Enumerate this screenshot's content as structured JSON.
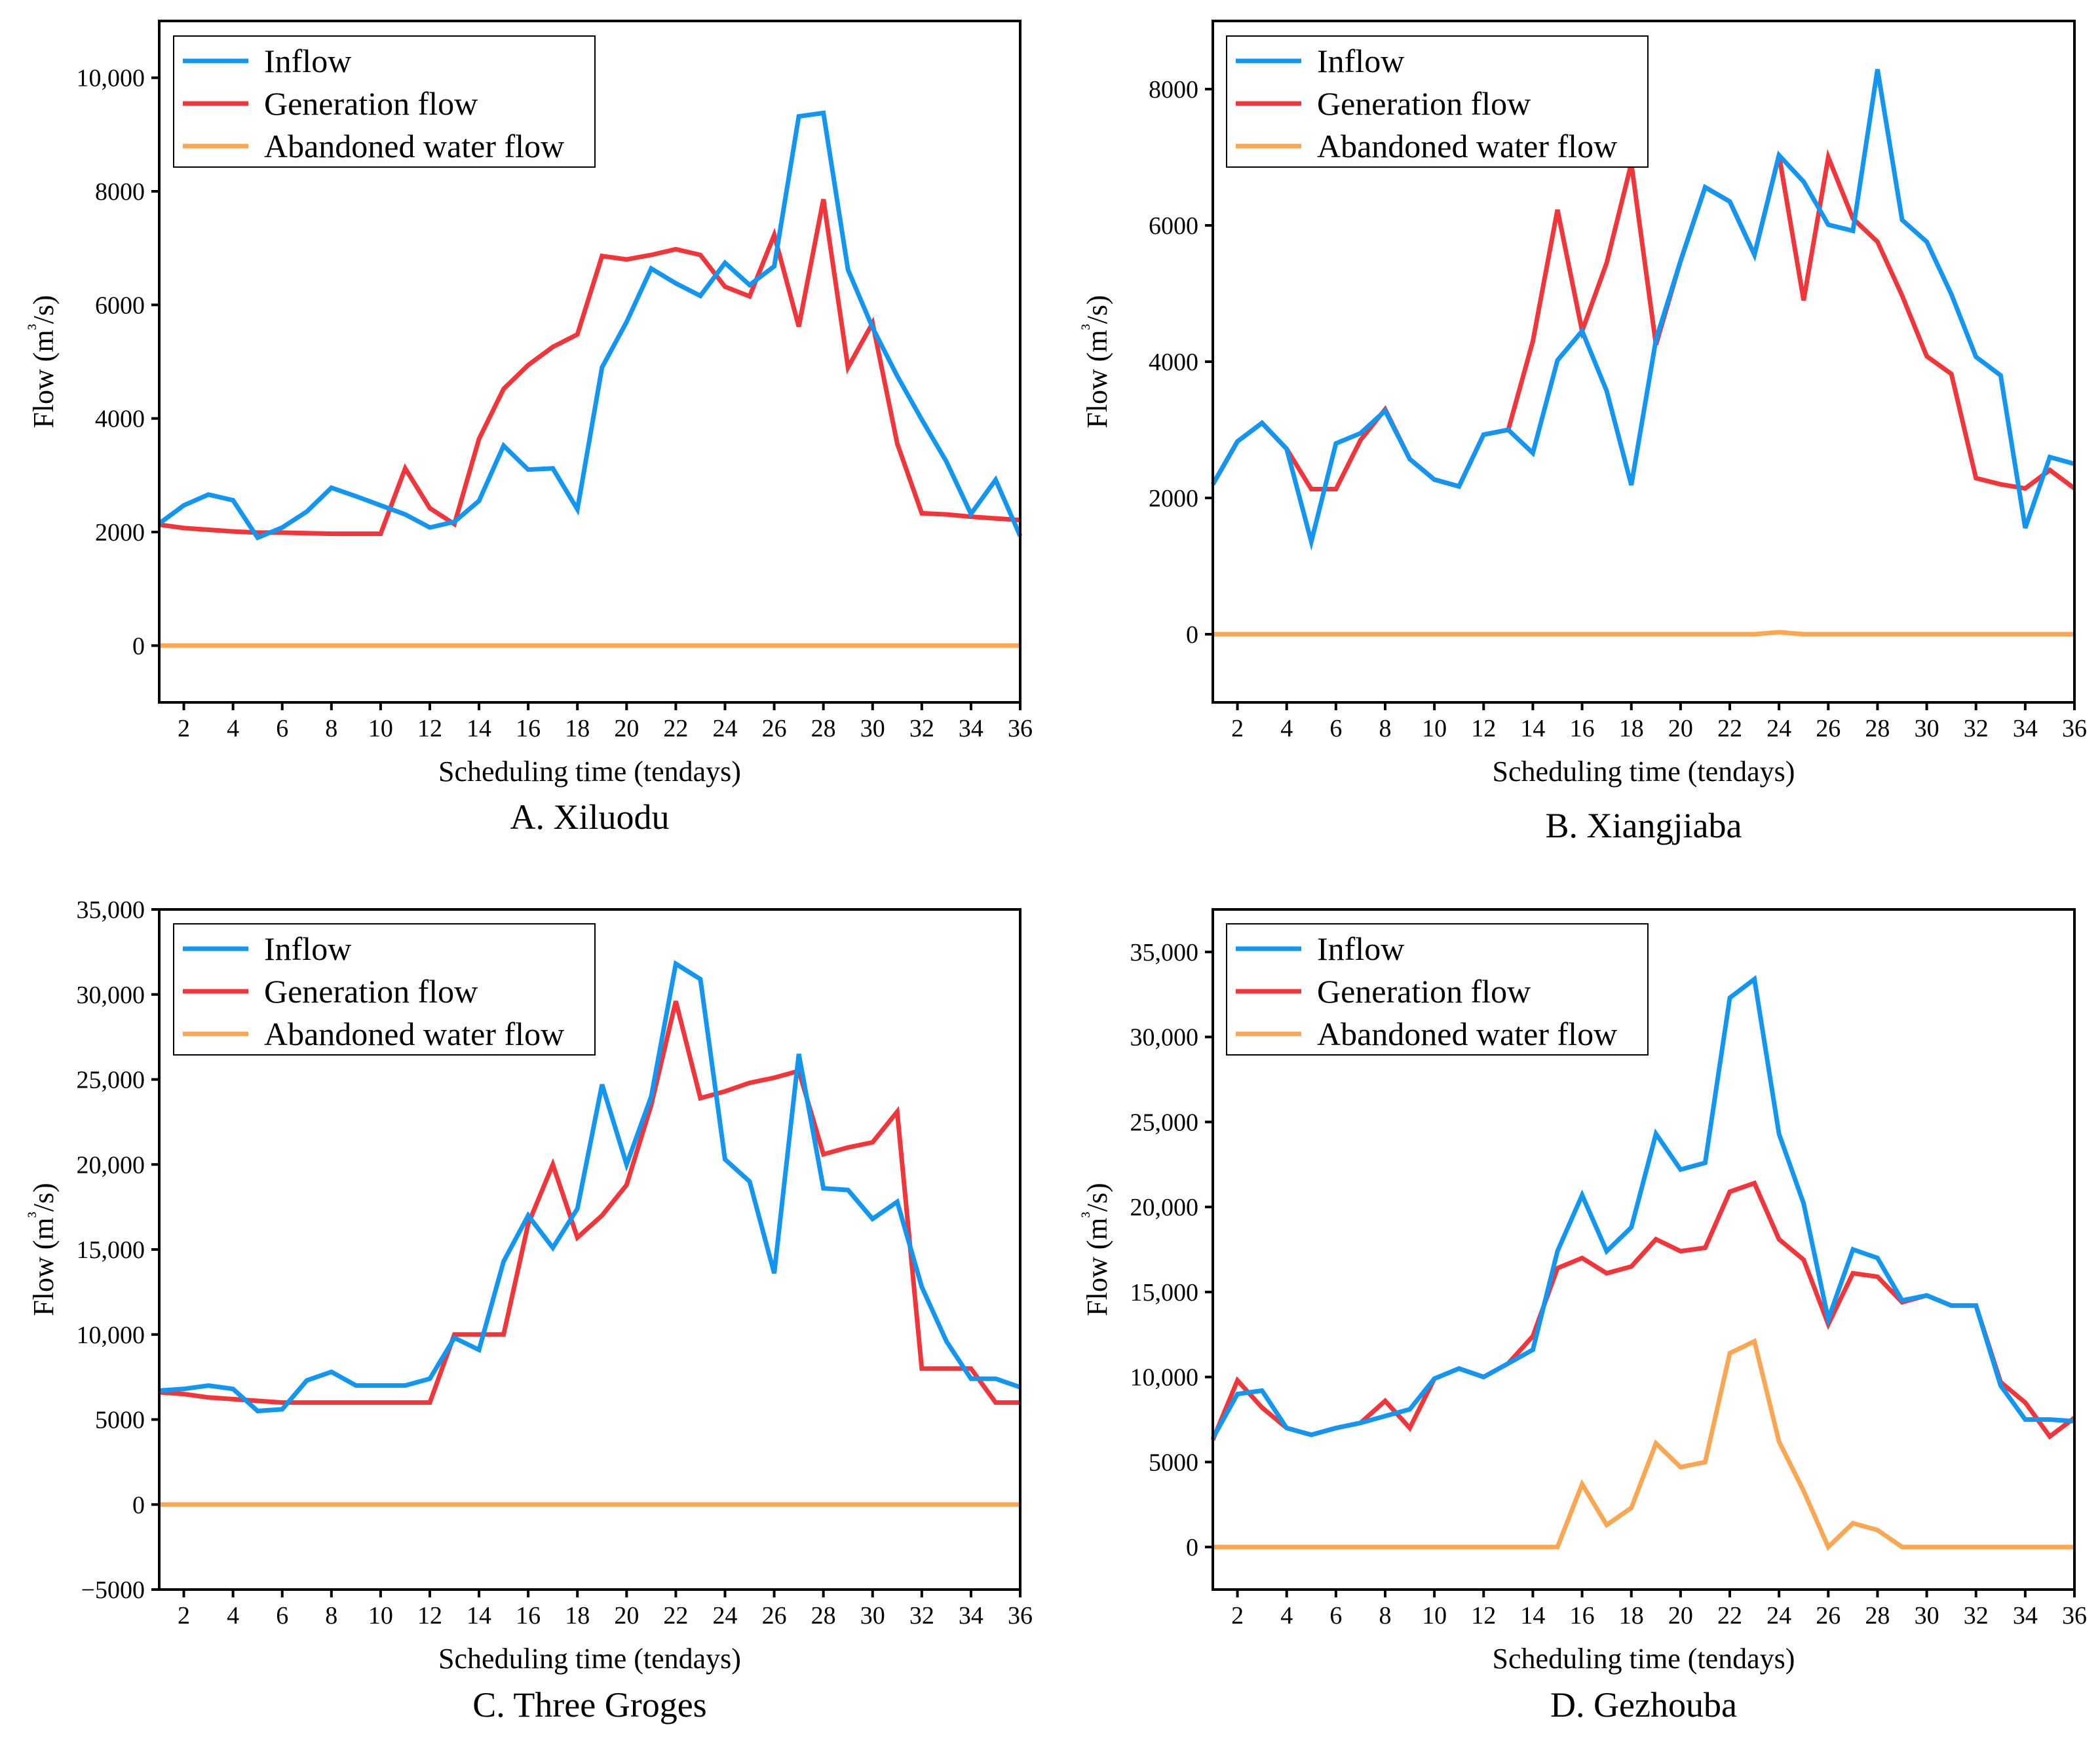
{
  "colors": {
    "inflow": "#1296F0",
    "generation": "#F0363A",
    "abandoned": "#F9A752",
    "axis": "#000000"
  },
  "legend": {
    "inflow": "Inflow",
    "generation": "Generation flow",
    "abandoned": "Abandoned water flow"
  },
  "chart_data": [
    {
      "type": "line",
      "caption": "A. Xiluodu",
      "xlabel": "Scheduling time (tendays)",
      "ylabel": "Flow",
      "ylabel_unit": "m³/s",
      "xlim": [
        1,
        36
      ],
      "ylim": [
        -1000,
        11000
      ],
      "xticks": [
        2,
        4,
        6,
        8,
        10,
        12,
        14,
        16,
        18,
        20,
        22,
        24,
        26,
        28,
        30,
        32,
        34,
        36
      ],
      "yticks": [
        {
          "value": 0,
          "label": "0"
        },
        {
          "value": 2000,
          "label": "2000"
        },
        {
          "value": 4000,
          "label": "4000"
        },
        {
          "value": 6000,
          "label": "6000"
        },
        {
          "value": 8000,
          "label": "8000"
        },
        {
          "value": 10000,
          "label": "10,000"
        }
      ],
      "x": [
        1,
        2,
        3,
        4,
        5,
        6,
        7,
        8,
        9,
        10,
        11,
        12,
        13,
        14,
        15,
        16,
        17,
        18,
        19,
        20,
        21,
        22,
        23,
        24,
        25,
        26,
        27,
        28,
        29,
        30,
        31,
        32,
        33,
        34,
        35,
        36
      ],
      "series": [
        {
          "name": "Inflow",
          "values": [
            2150,
            2470,
            2660,
            2560,
            1900,
            2080,
            2360,
            2780,
            2630,
            2470,
            2310,
            2080,
            2180,
            2550,
            3520,
            3100,
            3120,
            2400,
            4900,
            5700,
            6640,
            6380,
            6160,
            6740,
            6350,
            6680,
            9320,
            9380,
            6620,
            5600,
            4750,
            3980,
            3240,
            2320,
            2920,
            1930
          ]
        },
        {
          "name": "Generation flow",
          "values": [
            2130,
            2070,
            2040,
            2010,
            1990,
            1990,
            1980,
            1970,
            1970,
            1970,
            3120,
            2420,
            2140,
            3640,
            4520,
            4940,
            5260,
            5480,
            6860,
            6800,
            6880,
            6980,
            6880,
            6320,
            6150,
            7230,
            5620,
            7860,
            4900,
            5680,
            3560,
            2330,
            2310,
            2270,
            2240,
            2210
          ]
        },
        {
          "name": "Abandoned water flow",
          "values": [
            0,
            0,
            0,
            0,
            0,
            0,
            0,
            0,
            0,
            0,
            0,
            0,
            0,
            0,
            0,
            0,
            0,
            0,
            0,
            0,
            0,
            0,
            0,
            0,
            0,
            0,
            0,
            0,
            0,
            0,
            0,
            0,
            0,
            0,
            0,
            0
          ]
        }
      ]
    },
    {
      "type": "line",
      "caption": "B. Xiangjiaba",
      "xlabel": "Scheduling time (tendays)",
      "ylabel": "Flow",
      "ylabel_unit": "m³/s",
      "xlim": [
        1,
        36
      ],
      "ylim": [
        -1000,
        9000
      ],
      "xticks": [
        2,
        4,
        6,
        8,
        10,
        12,
        14,
        16,
        18,
        20,
        22,
        24,
        26,
        28,
        30,
        32,
        34,
        36
      ],
      "yticks": [
        {
          "value": 0,
          "label": "0"
        },
        {
          "value": 2000,
          "label": "2000"
        },
        {
          "value": 4000,
          "label": "4000"
        },
        {
          "value": 6000,
          "label": "6000"
        },
        {
          "value": 8000,
          "label": "8000"
        }
      ],
      "x": [
        1,
        2,
        3,
        4,
        5,
        6,
        7,
        8,
        9,
        10,
        11,
        12,
        13,
        14,
        15,
        16,
        17,
        18,
        19,
        20,
        21,
        22,
        23,
        24,
        25,
        26,
        27,
        28,
        29,
        30,
        31,
        32,
        33,
        34,
        35,
        36
      ],
      "series": [
        {
          "name": "Inflow",
          "values": [
            2200,
            2830,
            3100,
            2720,
            1360,
            2800,
            2950,
            3280,
            2570,
            2270,
            2170,
            2930,
            3000,
            2660,
            4020,
            4450,
            3570,
            2190,
            4320,
            5480,
            6560,
            6350,
            5570,
            7030,
            6640,
            6010,
            5920,
            8290,
            6080,
            5760,
            4990,
            4070,
            3800,
            1560,
            2600,
            2500
          ]
        },
        {
          "name": "Generation flow",
          "values": [
            2200,
            2830,
            3100,
            2720,
            2130,
            2130,
            2850,
            3300,
            2570,
            2270,
            2170,
            2930,
            3000,
            4300,
            6230,
            4450,
            5450,
            6910,
            4250,
            5480,
            6560,
            6350,
            5570,
            7030,
            4900,
            7000,
            6100,
            5760,
            4970,
            4080,
            3820,
            2290,
            2200,
            2140,
            2410,
            2140
          ]
        },
        {
          "name": "Abandoned water flow",
          "values": [
            0,
            0,
            0,
            0,
            0,
            0,
            0,
            0,
            0,
            0,
            0,
            0,
            0,
            0,
            0,
            0,
            0,
            0,
            0,
            0,
            0,
            0,
            0,
            30,
            0,
            0,
            0,
            0,
            0,
            0,
            0,
            0,
            0,
            0,
            0,
            0
          ]
        }
      ]
    },
    {
      "type": "line",
      "caption": "C. Three Groges",
      "xlabel": "Scheduling time (tendays)",
      "ylabel": "Flow",
      "ylabel_unit": "m³/s",
      "xlim": [
        1,
        36
      ],
      "ylim": [
        -5000,
        35000
      ],
      "xticks": [
        2,
        4,
        6,
        8,
        10,
        12,
        14,
        16,
        18,
        20,
        22,
        24,
        26,
        28,
        30,
        32,
        34,
        36
      ],
      "yticks": [
        {
          "value": -5000,
          "label": "−5000"
        },
        {
          "value": 0,
          "label": "0"
        },
        {
          "value": 5000,
          "label": "5000"
        },
        {
          "value": 10000,
          "label": "10,000"
        },
        {
          "value": 15000,
          "label": "15,000"
        },
        {
          "value": 20000,
          "label": "20,000"
        },
        {
          "value": 25000,
          "label": "25,000"
        },
        {
          "value": 30000,
          "label": "30,000"
        },
        {
          "value": 35000,
          "label": "35,000"
        }
      ],
      "x": [
        1,
        2,
        3,
        4,
        5,
        6,
        7,
        8,
        9,
        10,
        11,
        12,
        13,
        14,
        15,
        16,
        17,
        18,
        19,
        20,
        21,
        22,
        23,
        24,
        25,
        26,
        27,
        28,
        29,
        30,
        31,
        32,
        33,
        34,
        35,
        36
      ],
      "series": [
        {
          "name": "Inflow",
          "values": [
            6700,
            6800,
            7000,
            6800,
            5500,
            5600,
            7300,
            7800,
            7000,
            7000,
            7000,
            7400,
            9800,
            9100,
            14300,
            17000,
            15100,
            17400,
            24700,
            20000,
            24000,
            31800,
            30900,
            20300,
            19000,
            13600,
            26500,
            18600,
            18500,
            16800,
            17800,
            12800,
            9600,
            7400,
            7400,
            6900
          ]
        },
        {
          "name": "Generation flow",
          "values": [
            6600,
            6500,
            6300,
            6200,
            6100,
            6000,
            6000,
            6000,
            6000,
            6000,
            6000,
            6000,
            10000,
            10000,
            10000,
            16500,
            20000,
            15700,
            17000,
            18800,
            23500,
            29600,
            23900,
            24300,
            24800,
            25100,
            25500,
            20600,
            21000,
            21300,
            23100,
            8000,
            8000,
            8000,
            6000,
            6000
          ]
        },
        {
          "name": "Abandoned water flow",
          "values": [
            0,
            0,
            0,
            0,
            0,
            0,
            0,
            0,
            0,
            0,
            0,
            0,
            0,
            0,
            0,
            0,
            0,
            0,
            0,
            0,
            0,
            0,
            0,
            0,
            0,
            0,
            0,
            0,
            0,
            0,
            0,
            0,
            0,
            0,
            0,
            0
          ]
        }
      ]
    },
    {
      "type": "line",
      "caption": "D. Gezhouba",
      "xlabel": "Scheduling time (tendays)",
      "ylabel": "Flow",
      "ylabel_unit": "m³/s",
      "xlim": [
        1,
        36
      ],
      "ylim": [
        -2500,
        37500
      ],
      "xticks": [
        2,
        4,
        6,
        8,
        10,
        12,
        14,
        16,
        18,
        20,
        22,
        24,
        26,
        28,
        30,
        32,
        34,
        36
      ],
      "yticks": [
        {
          "value": 0,
          "label": "0"
        },
        {
          "value": 5000,
          "label": "5000"
        },
        {
          "value": 10000,
          "label": "10,000"
        },
        {
          "value": 15000,
          "label": "15,000"
        },
        {
          "value": 20000,
          "label": "20,000"
        },
        {
          "value": 25000,
          "label": "25,000"
        },
        {
          "value": 30000,
          "label": "30,000"
        },
        {
          "value": 35000,
          "label": "35,000"
        }
      ],
      "x": [
        1,
        2,
        3,
        4,
        5,
        6,
        7,
        8,
        9,
        10,
        11,
        12,
        13,
        14,
        15,
        16,
        17,
        18,
        19,
        20,
        21,
        22,
        23,
        24,
        25,
        26,
        27,
        28,
        29,
        30,
        31,
        32,
        33,
        34,
        35,
        36
      ],
      "series": [
        {
          "name": "Inflow",
          "values": [
            6400,
            9000,
            9200,
            7000,
            6600,
            7000,
            7300,
            7700,
            8100,
            9900,
            10500,
            10000,
            10800,
            11600,
            17400,
            20700,
            17400,
            18800,
            24300,
            22200,
            22600,
            32300,
            33400,
            24300,
            20200,
            13400,
            17500,
            17000,
            14500,
            14800,
            14200,
            14200,
            9500,
            7500,
            7500,
            7400
          ]
        },
        {
          "name": "Generation flow",
          "values": [
            6300,
            9800,
            8200,
            7000,
            6600,
            7000,
            7300,
            8600,
            7000,
            9900,
            10500,
            10000,
            10800,
            12400,
            16400,
            17000,
            16100,
            16500,
            18100,
            17400,
            17600,
            20900,
            21400,
            18100,
            16900,
            13100,
            16100,
            15900,
            14400,
            14800,
            14200,
            14200,
            9700,
            8500,
            6500,
            7600
          ]
        },
        {
          "name": "Abandoned water flow",
          "values": [
            0,
            0,
            0,
            0,
            0,
            0,
            0,
            0,
            0,
            0,
            0,
            0,
            0,
            0,
            0,
            3700,
            1300,
            2300,
            6100,
            4700,
            5000,
            11400,
            12100,
            6200,
            3300,
            0,
            1400,
            1000,
            0,
            0,
            0,
            0,
            0,
            0,
            0,
            0
          ]
        }
      ]
    }
  ]
}
